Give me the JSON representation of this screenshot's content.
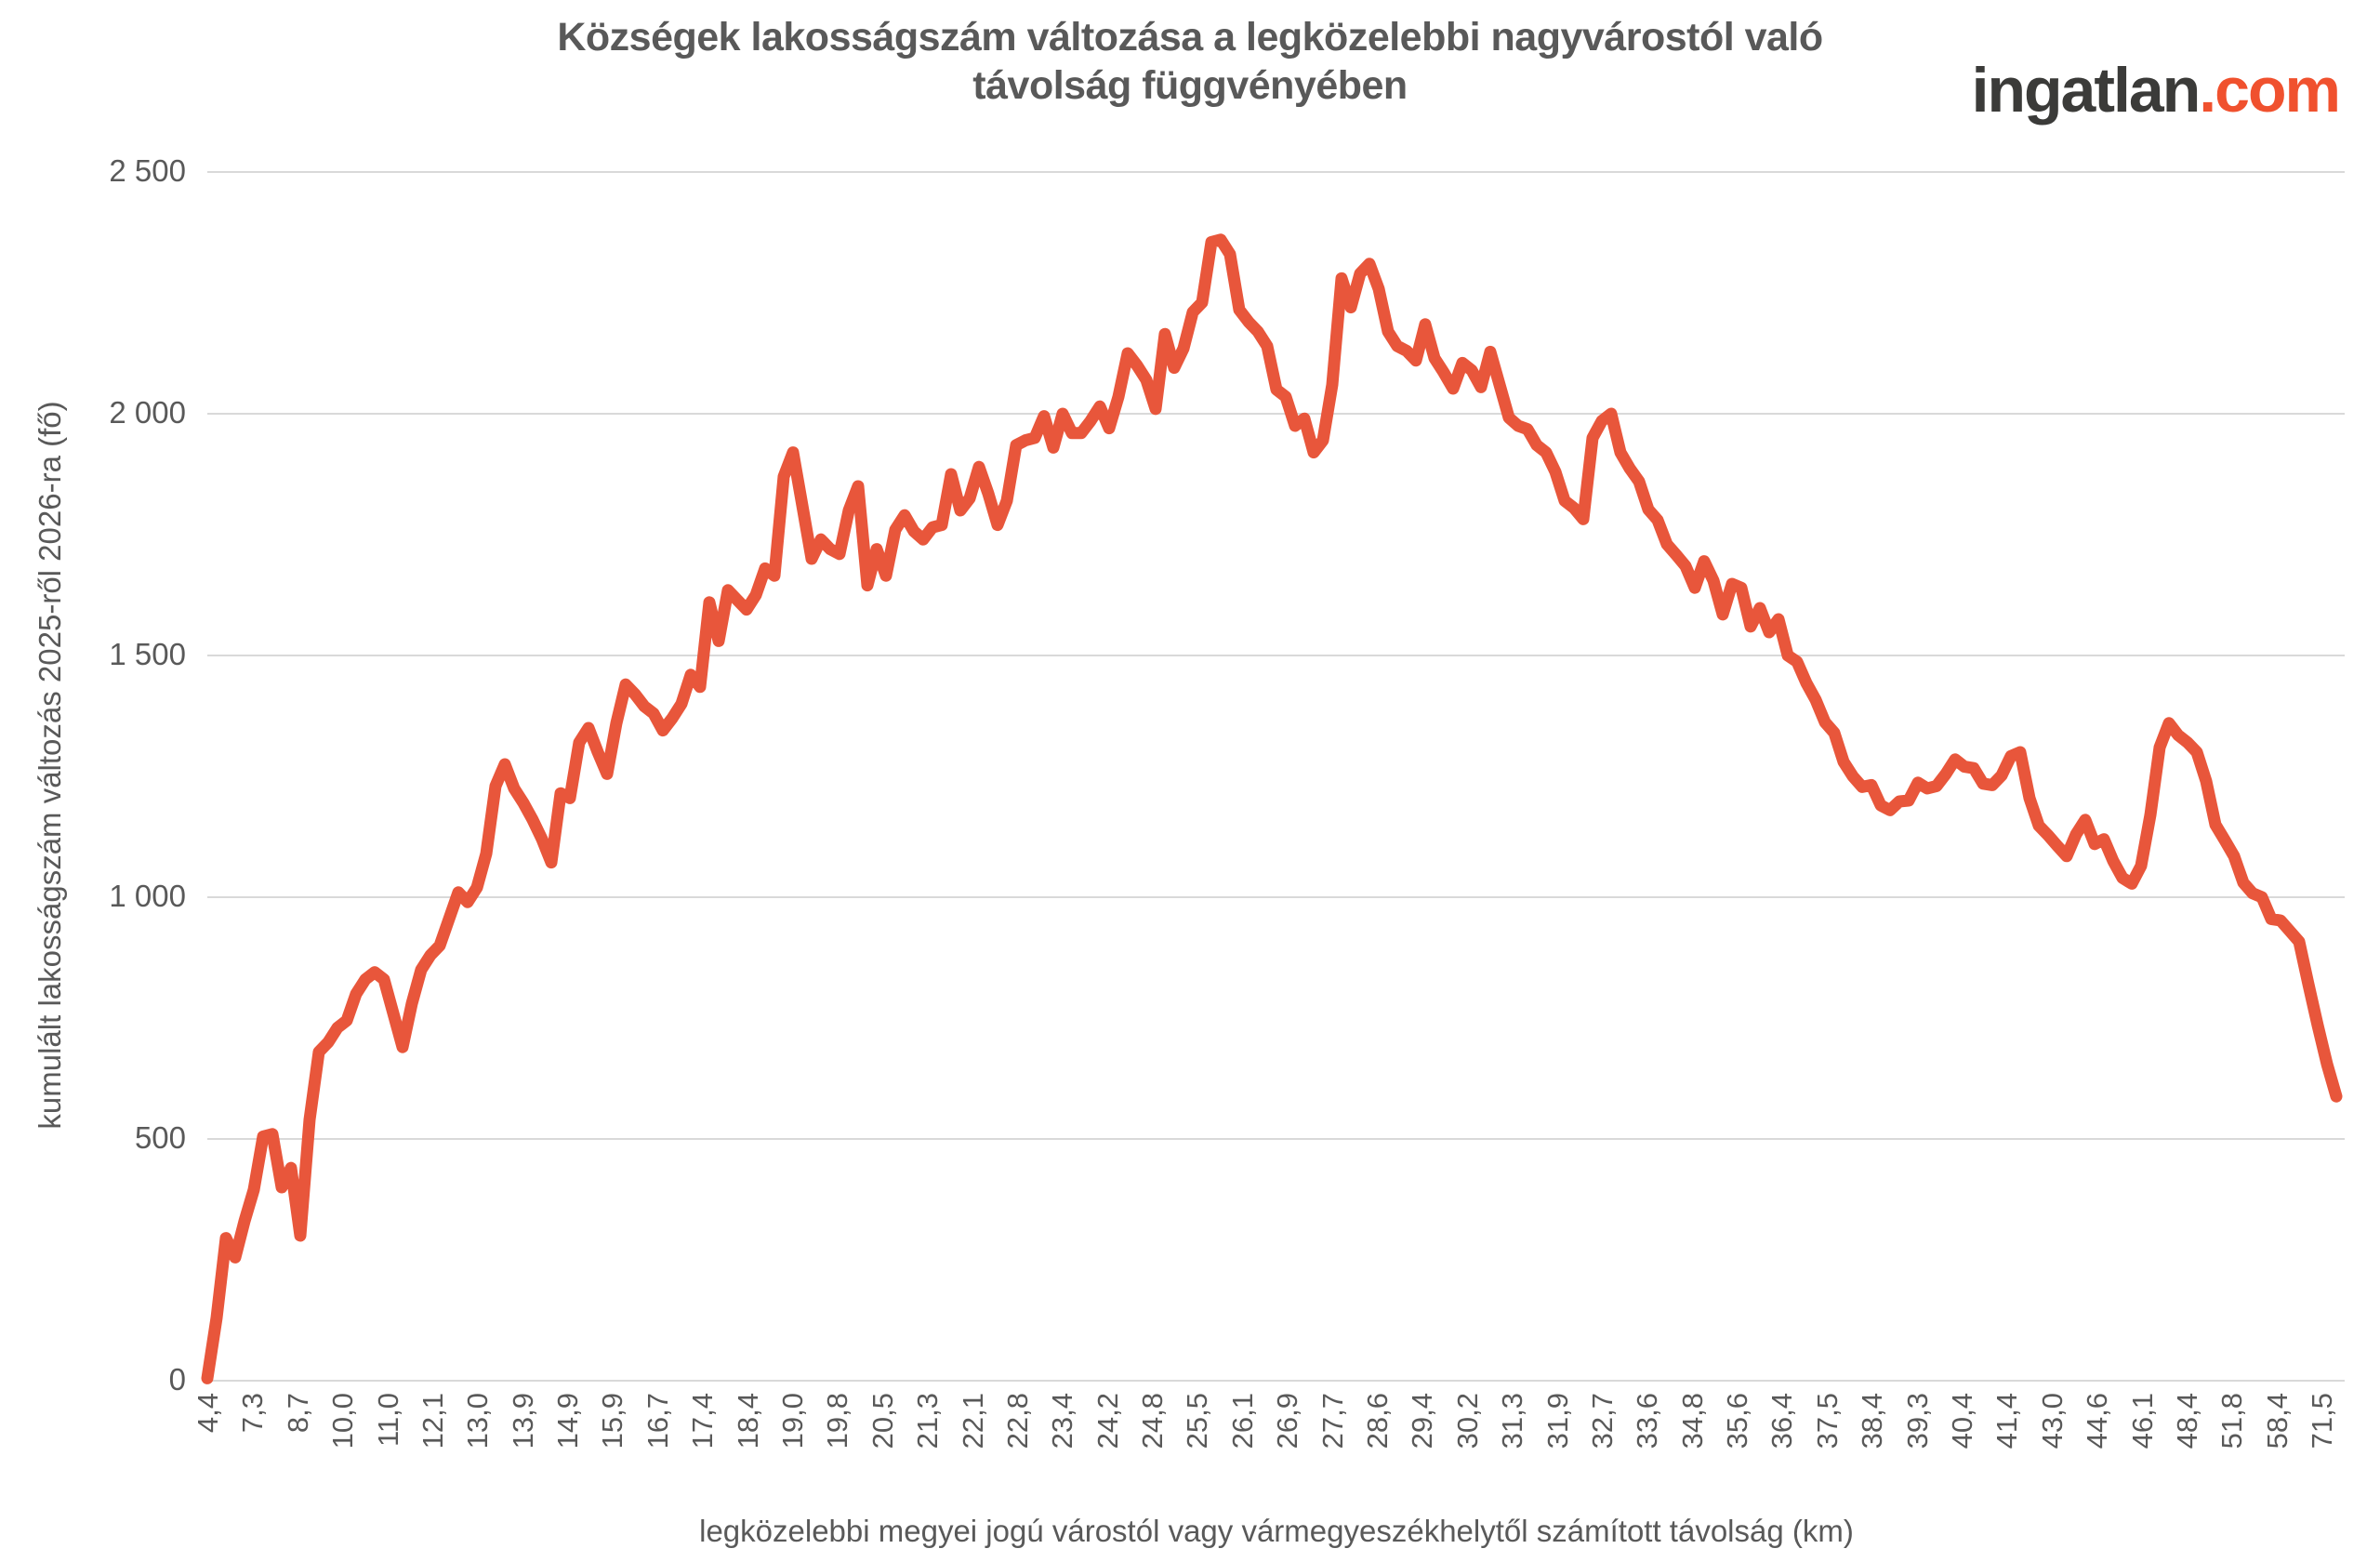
{
  "header": {
    "title_lines": [
      "Községek lakosságszám változása a legközelebbi nagyvárostól való",
      "távolság függvényében"
    ],
    "logo": {
      "name": "ingatlan.com",
      "text_main": "ingatlan",
      "text_accent": ".com"
    }
  },
  "colors": {
    "text_gray": "#595959",
    "gridline": "#D9D9D9",
    "line": "#E8563B",
    "logo_dark": "#3B3B39",
    "logo_accent": "#F0512E",
    "background": "#FFFFFF"
  },
  "chart_data": {
    "type": "line",
    "title": "Községek lakosságszám változása a legközelebbi nagyvárostól való távolság függvényében",
    "xlabel": "legközelebbi megyei jogú várostól vagy vármegyeszékhelytől számított távolság (km)",
    "ylabel": "kumulált lakosságszám változás 2025-ről 2026-ra (fő)",
    "ylim": [
      0,
      2500
    ],
    "yticks": [
      0,
      500,
      1000,
      1500,
      2000,
      2500
    ],
    "ytick_labels": [
      "0",
      "500",
      "1 000",
      "1 500",
      "2 000",
      "2 500"
    ],
    "xtick_labels": [
      "4,4",
      "7,3",
      "8,7",
      "10,0",
      "11,0",
      "12,1",
      "13,0",
      "13,9",
      "14,9",
      "15,9",
      "16,7",
      "17,4",
      "18,4",
      "19,0",
      "19,8",
      "20,5",
      "21,3",
      "22,1",
      "22,8",
      "23,4",
      "24,2",
      "24,8",
      "25,5",
      "26,1",
      "26,9",
      "27,7",
      "28,6",
      "29,4",
      "30,2",
      "31,3",
      "31,9",
      "32,7",
      "33,6",
      "34,8",
      "35,6",
      "36,4",
      "37,5",
      "38,4",
      "39,3",
      "40,4",
      "41,4",
      "43,0",
      "44,6",
      "46,1",
      "48,4",
      "51,8",
      "58,4",
      "71,5"
    ],
    "grid": "horizontal",
    "legend": "none",
    "line_color": "#E8563B",
    "series": [
      {
        "name": "kumulált lakosságszám változás",
        "x_sampling": "230 pont egyenletesen a vízszintes tengely mentén (a tengelycímkék kvantilis-csoportokat jelölnek)",
        "values": [
          5,
          130,
          295,
          255,
          330,
          395,
          505,
          510,
          400,
          440,
          300,
          540,
          680,
          700,
          730,
          745,
          800,
          830,
          845,
          830,
          760,
          690,
          780,
          850,
          880,
          900,
          955,
          1010,
          990,
          1020,
          1090,
          1230,
          1275,
          1225,
          1195,
          1160,
          1120,
          1072,
          1215,
          1205,
          1320,
          1350,
          1300,
          1255,
          1360,
          1440,
          1420,
          1395,
          1380,
          1345,
          1370,
          1400,
          1460,
          1435,
          1610,
          1530,
          1635,
          1615,
          1595,
          1625,
          1680,
          1665,
          1870,
          1920,
          1810,
          1700,
          1740,
          1720,
          1710,
          1800,
          1850,
          1645,
          1720,
          1665,
          1760,
          1790,
          1757,
          1740,
          1765,
          1770,
          1875,
          1800,
          1825,
          1890,
          1835,
          1770,
          1820,
          1935,
          1945,
          1950,
          1995,
          1930,
          2000,
          1960,
          1960,
          1985,
          2015,
          1970,
          2035,
          2125,
          2100,
          2070,
          2010,
          2165,
          2095,
          2135,
          2210,
          2230,
          2355,
          2360,
          2330,
          2215,
          2190,
          2170,
          2140,
          2050,
          2035,
          1975,
          1990,
          1920,
          1945,
          2060,
          2280,
          2220,
          2290,
          2310,
          2258,
          2170,
          2140,
          2130,
          2110,
          2185,
          2115,
          2085,
          2052,
          2105,
          2090,
          2055,
          2128,
          2060,
          1992,
          1975,
          1968,
          1935,
          1920,
          1880,
          1820,
          1805,
          1782,
          1950,
          1985,
          2000,
          1920,
          1887,
          1860,
          1802,
          1780,
          1730,
          1708,
          1685,
          1640,
          1695,
          1655,
          1585,
          1648,
          1640,
          1560,
          1598,
          1548,
          1575,
          1500,
          1487,
          1443,
          1408,
          1362,
          1340,
          1280,
          1250,
          1228,
          1232,
          1190,
          1180,
          1198,
          1200,
          1237,
          1225,
          1230,
          1255,
          1285,
          1270,
          1267,
          1235,
          1232,
          1252,
          1292,
          1300,
          1205,
          1148,
          1128,
          1106,
          1085,
          1130,
          1160,
          1110,
          1120,
          1075,
          1040,
          1028,
          1065,
          1170,
          1310,
          1360,
          1335,
          1320,
          1300,
          1240,
          1150,
          1118,
          1085,
          1030,
          1008,
          1000,
          955,
          952,
          930,
          908,
          820,
          735,
          655,
          588
        ]
      }
    ]
  }
}
